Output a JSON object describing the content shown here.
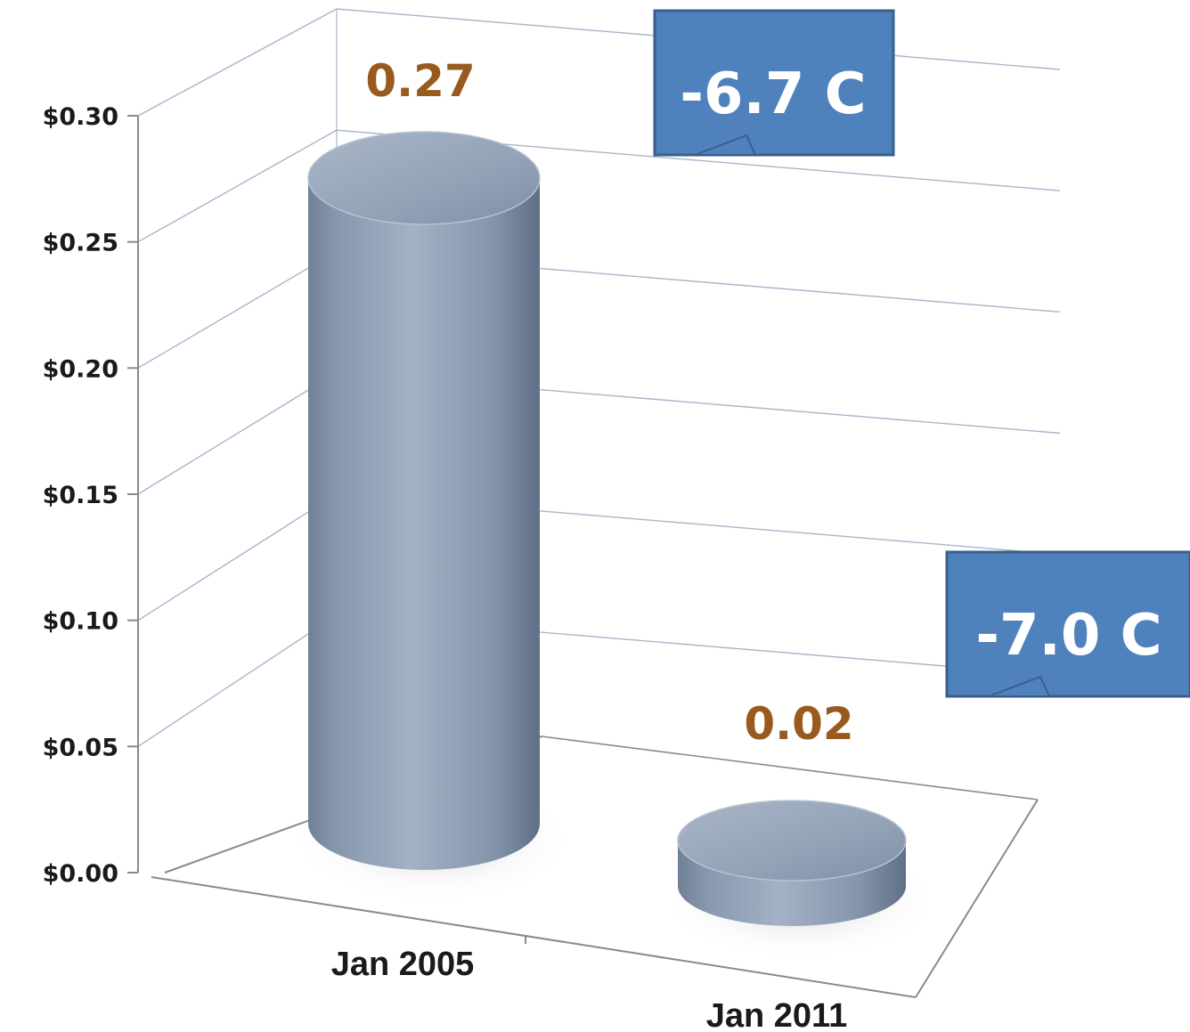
{
  "chart_data": {
    "type": "bar",
    "style": "3d-cylinder",
    "categories": [
      "Jan 2005",
      "Jan 2011"
    ],
    "values": [
      0.27,
      0.02
    ],
    "data_labels": [
      "0.27",
      "0.02"
    ],
    "y_ticks": [
      "$0.00",
      "$0.05",
      "$0.10",
      "$0.15",
      "$0.20",
      "$0.25",
      "$0.30"
    ],
    "y_tick_values": [
      0,
      0.05,
      0.1,
      0.15,
      0.2,
      0.25,
      0.3
    ],
    "ylim": [
      0,
      0.3
    ],
    "grid": true,
    "legend": "none",
    "colors": {
      "bar": "#8c9db4",
      "data_label": "#985a1e",
      "callout": "#4f81bd",
      "gridline": "#a6b6cb"
    },
    "annotations": [
      "-6.7 C",
      "-7.0 C"
    ]
  }
}
